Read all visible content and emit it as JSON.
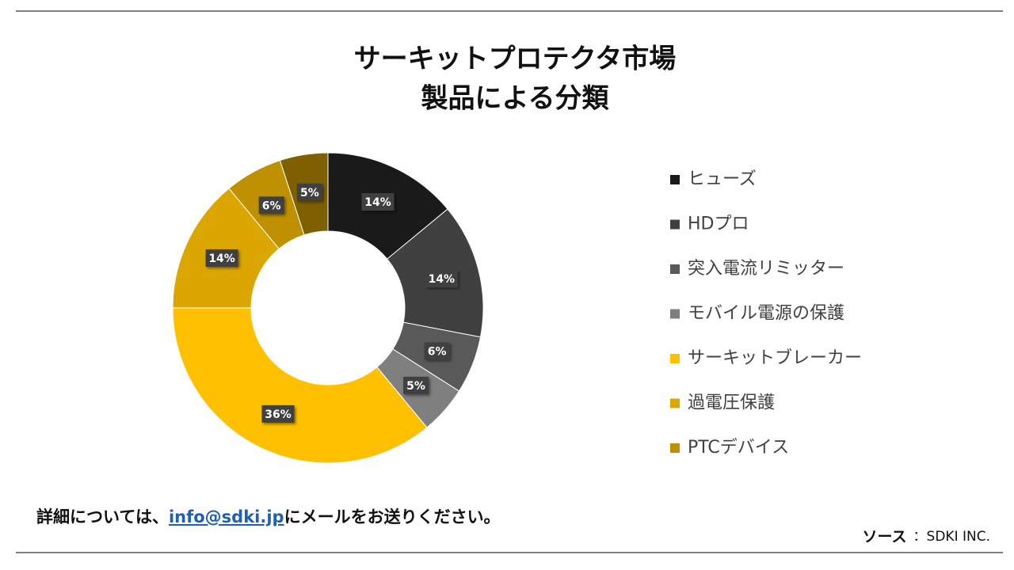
{
  "chart_data": {
    "type": "donut",
    "title": "サーキットプロテクタ市場",
    "subtitle": "製品による分類",
    "categories": [
      "ヒューズ",
      "HDプロ",
      "突入電流リミッター",
      "モバイル電源の保護",
      "サーキットブレーカー",
      "過電圧保護",
      "PTCデバイス",
      null
    ],
    "values": [
      14,
      14,
      6,
      5,
      36,
      14,
      6,
      5
    ],
    "value_labels": [
      "14%",
      "14%",
      "6%",
      "5%",
      "36%",
      "14%",
      "6%",
      "5%"
    ],
    "colors": [
      "#1a1a1a",
      "#404040",
      "#595959",
      "#7f7f7f",
      "#ffc000",
      "#dba600",
      "#bf9000",
      "#7f6000"
    ],
    "legend": "right"
  },
  "footer": {
    "note_before": "詳細については、",
    "email": "info@sdki.jp",
    "note_after": "にメールをお送りください。",
    "source_label": "ソース",
    "source": "：SDKI INC."
  }
}
